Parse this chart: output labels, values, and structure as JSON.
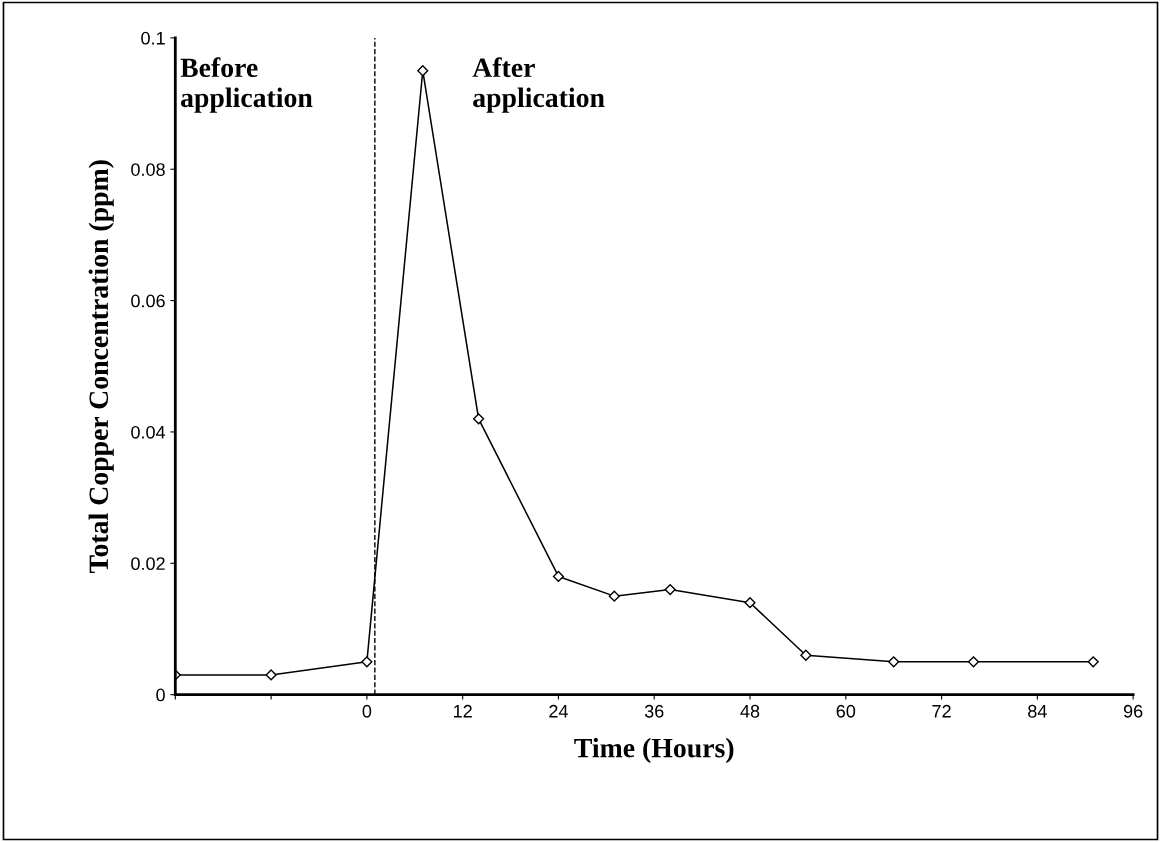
{
  "chart_data": {
    "type": "line",
    "xlabel": "Time (Hours)",
    "ylabel": "Total Copper Concentration (ppm)",
    "x": [
      -24,
      -12,
      0,
      7,
      14,
      24,
      31,
      38,
      48,
      55,
      66,
      76,
      91
    ],
    "series": [
      {
        "color": "#000000",
        "values": [
          0.003,
          0.003,
          0.005,
          0.095,
          0.042,
          0.018,
          0.015,
          0.016,
          0.014,
          0.006,
          0.005,
          0.005,
          0.005
        ]
      }
    ],
    "marker": "diamond",
    "line_style": "solid",
    "grid": false,
    "legend": false,
    "xlim": [
      -24,
      96
    ],
    "xticks": [
      {
        "value": -24,
        "label": null
      },
      {
        "value": -12,
        "label": null
      },
      0,
      12,
      24,
      36,
      48,
      60,
      72,
      84,
      96
    ],
    "ylim": [
      0,
      0.1
    ],
    "yticks": [
      0,
      0.02,
      0.04,
      0.06,
      0.08,
      0.1
    ],
    "ref_lines": [
      {
        "axis": "x",
        "value": 1,
        "line_style": "dashed",
        "color": "#000000"
      }
    ],
    "annotations": [
      "Before\napplication",
      "After\napplication"
    ]
  }
}
